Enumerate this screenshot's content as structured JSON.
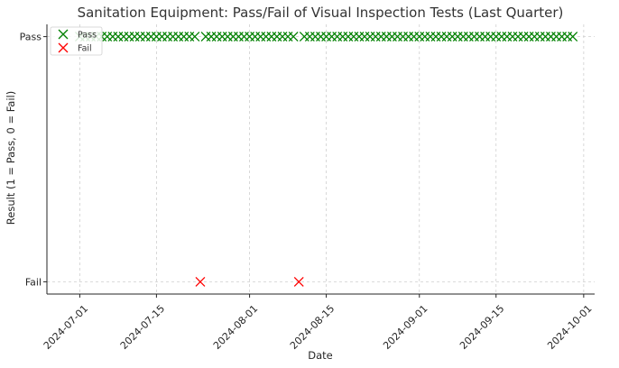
{
  "chart_data": {
    "type": "scatter",
    "title": "Sanitation Equipment: Pass/Fail of Visual Inspection Tests (Last Quarter)",
    "xlabel": "Date",
    "ylabel": "Result (1 = Pass, 0 = Fail)",
    "xlim": [
      "2024-06-25",
      "2024-10-03"
    ],
    "ylim": [
      -0.05,
      1.05
    ],
    "x_ticks": [
      "2024-07-01",
      "2024-07-15",
      "2024-08-01",
      "2024-08-15",
      "2024-09-01",
      "2024-09-15",
      "2024-10-01"
    ],
    "y_ticks": [
      {
        "value": 0,
        "label": "Fail"
      },
      {
        "value": 1,
        "label": "Pass"
      }
    ],
    "grid": true,
    "legend": "top-left",
    "marker": "x",
    "pass_dates": [
      "2024-07-01",
      "2024-07-02",
      "2024-07-03",
      "2024-07-04",
      "2024-07-05",
      "2024-07-06",
      "2024-07-07",
      "2024-07-08",
      "2024-07-09",
      "2024-07-10",
      "2024-07-11",
      "2024-07-12",
      "2024-07-13",
      "2024-07-14",
      "2024-07-15",
      "2024-07-16",
      "2024-07-17",
      "2024-07-18",
      "2024-07-19",
      "2024-07-20",
      "2024-07-21",
      "2024-07-22",
      "2024-07-24",
      "2024-07-25",
      "2024-07-26",
      "2024-07-27",
      "2024-07-28",
      "2024-07-29",
      "2024-07-30",
      "2024-07-31",
      "2024-08-01",
      "2024-08-02",
      "2024-08-03",
      "2024-08-04",
      "2024-08-05",
      "2024-08-06",
      "2024-08-07",
      "2024-08-08",
      "2024-08-09",
      "2024-08-11",
      "2024-08-12",
      "2024-08-13",
      "2024-08-14",
      "2024-08-15",
      "2024-08-16",
      "2024-08-17",
      "2024-08-18",
      "2024-08-19",
      "2024-08-20",
      "2024-08-21",
      "2024-08-22",
      "2024-08-23",
      "2024-08-24",
      "2024-08-25",
      "2024-08-26",
      "2024-08-27",
      "2024-08-28",
      "2024-08-29",
      "2024-08-30",
      "2024-08-31",
      "2024-09-01",
      "2024-09-02",
      "2024-09-03",
      "2024-09-04",
      "2024-09-05",
      "2024-09-06",
      "2024-09-07",
      "2024-09-08",
      "2024-09-09",
      "2024-09-10",
      "2024-09-11",
      "2024-09-12",
      "2024-09-13",
      "2024-09-14",
      "2024-09-15",
      "2024-09-16",
      "2024-09-17",
      "2024-09-18",
      "2024-09-19",
      "2024-09-20",
      "2024-09-21",
      "2024-09-22",
      "2024-09-23",
      "2024-09-24",
      "2024-09-25",
      "2024-09-26",
      "2024-09-27",
      "2024-09-28",
      "2024-09-29"
    ],
    "fail_dates": [
      "2024-07-23",
      "2024-08-10"
    ],
    "series": [
      {
        "name": "Pass",
        "value": 1,
        "color": "#008000"
      },
      {
        "name": "Fail",
        "value": 0,
        "color": "#ff0000"
      }
    ]
  }
}
